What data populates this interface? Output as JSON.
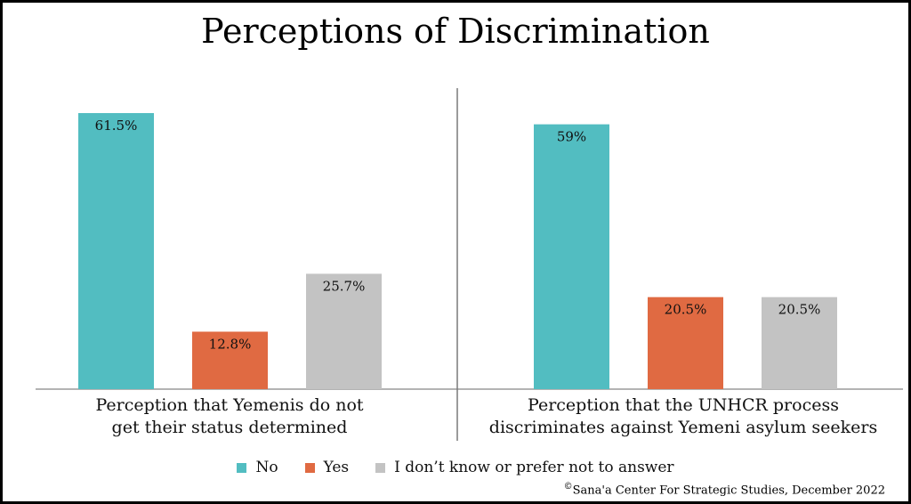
{
  "chart_data": {
    "type": "bar",
    "title": "Perceptions of Discrimination",
    "categories": [
      "Perception that Yemenis do not get their status determined",
      "Perception that the UNHCR process discriminates against Yemeni asylum seekers"
    ],
    "category_lines": [
      [
        "Perception that Yemenis do not",
        "get their status determined"
      ],
      [
        "Perception that the UNHCR process",
        "discriminates against Yemeni asylum seekers"
      ]
    ],
    "series": [
      {
        "name": "No",
        "color": "#52BDC1",
        "values": [
          61.5,
          59
        ],
        "labels": [
          "61.5%",
          "59%"
        ]
      },
      {
        "name": "Yes",
        "color": "#E06A42",
        "values": [
          12.8,
          20.5
        ],
        "labels": [
          "12.8%",
          "20.5%"
        ]
      },
      {
        "name": "I don’t know or prefer not to answer",
        "color": "#C3C3C3",
        "values": [
          25.7,
          20.5
        ],
        "labels": [
          "25.7%",
          "20.5%"
        ]
      }
    ],
    "ylim": [
      0,
      61.5
    ],
    "grid": false,
    "legend_position": "bottom"
  },
  "source": {
    "symbol": "©",
    "text": "Sana'a Center For Strategic Studies, December 2022"
  }
}
